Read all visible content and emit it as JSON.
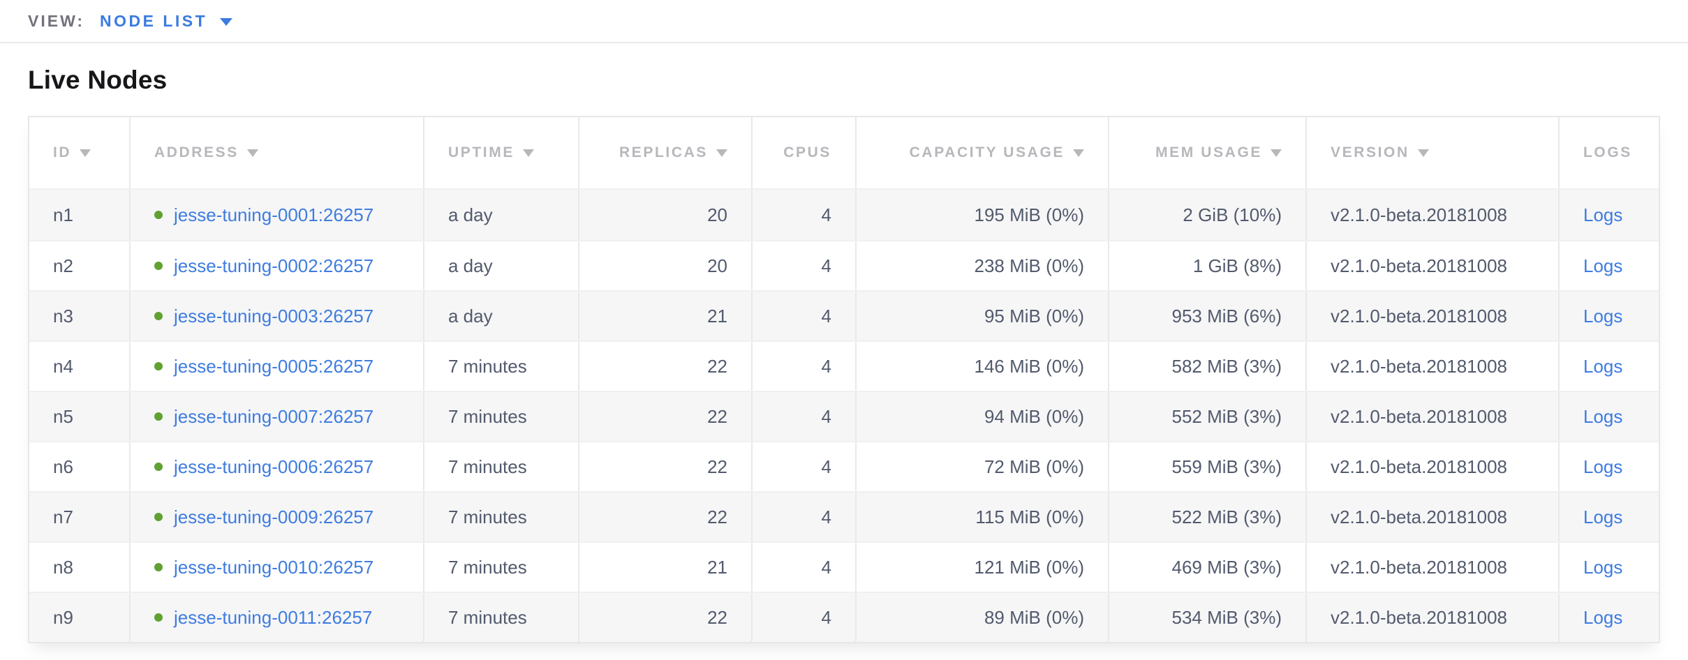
{
  "view_bar": {
    "label": "VIEW:",
    "selected": "NODE LIST"
  },
  "page": {
    "title": "Live Nodes"
  },
  "colors": {
    "link_blue": "#3e7ce0",
    "status_green": "#60a131",
    "header_gray": "#b7b7bc",
    "cell_text": "#525a6c"
  },
  "table": {
    "columns": [
      {
        "key": "id",
        "label": "ID",
        "sort_arrow": true
      },
      {
        "key": "address",
        "label": "ADDRESS",
        "sort_arrow": true
      },
      {
        "key": "uptime",
        "label": "UPTIME",
        "sort_arrow": true
      },
      {
        "key": "replicas",
        "label": "REPLICAS",
        "sort_arrow": true
      },
      {
        "key": "cpus",
        "label": "CPUS",
        "sort_arrow": false
      },
      {
        "key": "capacity",
        "label": "CAPACITY USAGE",
        "sort_arrow": true
      },
      {
        "key": "mem",
        "label": "MEM USAGE",
        "sort_arrow": true
      },
      {
        "key": "version",
        "label": "VERSION",
        "sort_arrow": true
      },
      {
        "key": "logs",
        "label": "LOGS",
        "sort_arrow": false
      }
    ],
    "rows": [
      {
        "id": "n1",
        "address": "jesse-tuning-0001:26257",
        "uptime": "a day",
        "replicas": "20",
        "cpus": "4",
        "capacity": "195 MiB (0%)",
        "mem": "2 GiB (10%)",
        "version": "v2.1.0-beta.20181008",
        "logs": "Logs"
      },
      {
        "id": "n2",
        "address": "jesse-tuning-0002:26257",
        "uptime": "a day",
        "replicas": "20",
        "cpus": "4",
        "capacity": "238 MiB (0%)",
        "mem": "1 GiB (8%)",
        "version": "v2.1.0-beta.20181008",
        "logs": "Logs"
      },
      {
        "id": "n3",
        "address": "jesse-tuning-0003:26257",
        "uptime": "a day",
        "replicas": "21",
        "cpus": "4",
        "capacity": "95 MiB (0%)",
        "mem": "953 MiB (6%)",
        "version": "v2.1.0-beta.20181008",
        "logs": "Logs"
      },
      {
        "id": "n4",
        "address": "jesse-tuning-0005:26257",
        "uptime": "7 minutes",
        "replicas": "22",
        "cpus": "4",
        "capacity": "146 MiB (0%)",
        "mem": "582 MiB (3%)",
        "version": "v2.1.0-beta.20181008",
        "logs": "Logs"
      },
      {
        "id": "n5",
        "address": "jesse-tuning-0007:26257",
        "uptime": "7 minutes",
        "replicas": "22",
        "cpus": "4",
        "capacity": "94 MiB (0%)",
        "mem": "552 MiB (3%)",
        "version": "v2.1.0-beta.20181008",
        "logs": "Logs"
      },
      {
        "id": "n6",
        "address": "jesse-tuning-0006:26257",
        "uptime": "7 minutes",
        "replicas": "22",
        "cpus": "4",
        "capacity": "72 MiB (0%)",
        "mem": "559 MiB (3%)",
        "version": "v2.1.0-beta.20181008",
        "logs": "Logs"
      },
      {
        "id": "n7",
        "address": "jesse-tuning-0009:26257",
        "uptime": "7 minutes",
        "replicas": "22",
        "cpus": "4",
        "capacity": "115 MiB (0%)",
        "mem": "522 MiB (3%)",
        "version": "v2.1.0-beta.20181008",
        "logs": "Logs"
      },
      {
        "id": "n8",
        "address": "jesse-tuning-0010:26257",
        "uptime": "7 minutes",
        "replicas": "21",
        "cpus": "4",
        "capacity": "121 MiB (0%)",
        "mem": "469 MiB (3%)",
        "version": "v2.1.0-beta.20181008",
        "logs": "Logs"
      },
      {
        "id": "n9",
        "address": "jesse-tuning-0011:26257",
        "uptime": "7 minutes",
        "replicas": "22",
        "cpus": "4",
        "capacity": "89 MiB (0%)",
        "mem": "534 MiB (3%)",
        "version": "v2.1.0-beta.20181008",
        "logs": "Logs"
      }
    ]
  }
}
